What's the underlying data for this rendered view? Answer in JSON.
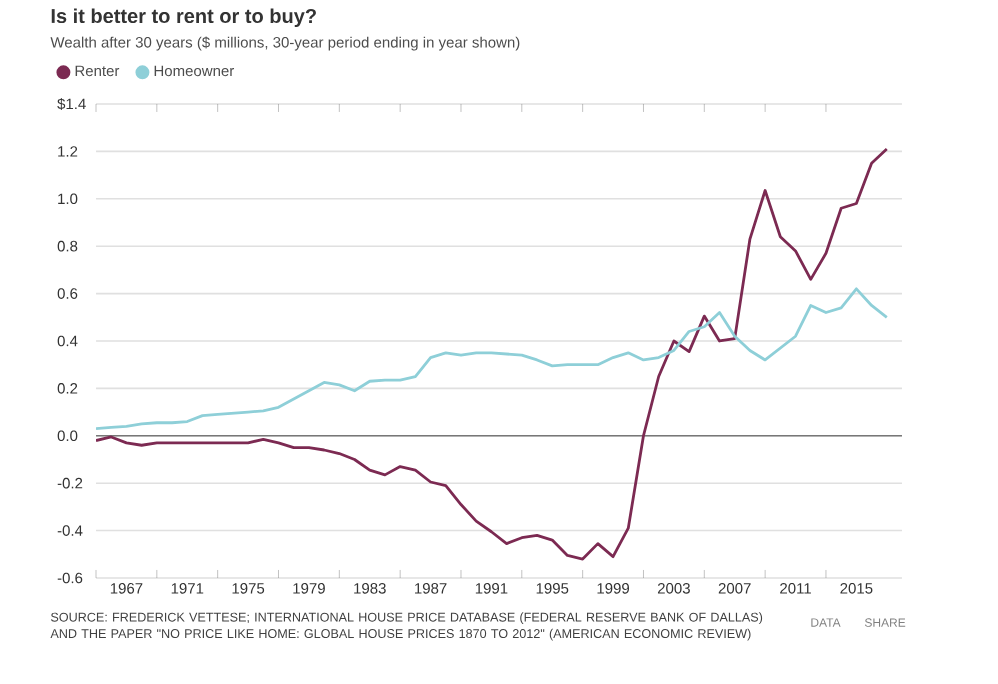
{
  "chart_data": {
    "type": "line",
    "title": "Is it better to rent or to buy?",
    "subtitle": "Wealth after 30 years ($ millions, 30-year period ending in year shown)",
    "x": [
      1965,
      1966,
      1967,
      1968,
      1969,
      1970,
      1971,
      1972,
      1973,
      1974,
      1975,
      1976,
      1977,
      1978,
      1979,
      1980,
      1981,
      1982,
      1983,
      1984,
      1985,
      1986,
      1987,
      1988,
      1989,
      1990,
      1991,
      1992,
      1993,
      1994,
      1995,
      1996,
      1997,
      1998,
      1999,
      2000,
      2001,
      2002,
      2003,
      2004,
      2005,
      2006,
      2007,
      2008,
      2009,
      2010,
      2011,
      2012,
      2013,
      2014,
      2015,
      2016,
      2017
    ],
    "series": [
      {
        "name": "Renter",
        "color": "#7c2a52",
        "values": [
          -0.02,
          -0.005,
          -0.03,
          -0.04,
          -0.03,
          -0.03,
          -0.03,
          -0.03,
          -0.03,
          -0.03,
          -0.03,
          -0.015,
          -0.03,
          -0.05,
          -0.05,
          -0.06,
          -0.075,
          -0.1,
          -0.145,
          -0.165,
          -0.13,
          -0.145,
          -0.195,
          -0.21,
          -0.29,
          -0.36,
          -0.405,
          -0.455,
          -0.43,
          -0.42,
          -0.44,
          -0.505,
          -0.52,
          -0.455,
          -0.51,
          -0.39,
          0.0,
          0.25,
          0.4,
          0.355,
          0.505,
          0.4,
          0.41,
          0.83,
          1.035,
          0.84,
          0.78,
          0.66,
          0.77,
          0.96,
          0.98,
          1.15,
          1.21
        ]
      },
      {
        "name": "Homeowner",
        "color": "#8ecfd8",
        "values": [
          0.03,
          0.035,
          0.04,
          0.05,
          0.055,
          0.055,
          0.06,
          0.085,
          0.09,
          0.095,
          0.1,
          0.105,
          0.12,
          0.155,
          0.19,
          0.225,
          0.215,
          0.19,
          0.23,
          0.235,
          0.235,
          0.25,
          0.33,
          0.35,
          0.34,
          0.35,
          0.35,
          0.345,
          0.34,
          0.32,
          0.295,
          0.3,
          0.3,
          0.3,
          0.33,
          0.35,
          0.32,
          0.33,
          0.36,
          0.44,
          0.46,
          0.52,
          0.42,
          0.36,
          0.32,
          0.37,
          0.42,
          0.55,
          0.52,
          0.54,
          0.62,
          0.55,
          0.5
        ]
      }
    ],
    "xlim": [
      1965,
      2018
    ],
    "xticks": [
      {
        "value": 1965,
        "label": null
      },
      1967,
      {
        "value": 1969,
        "label": null
      },
      1971,
      {
        "value": 1973,
        "label": null
      },
      1975,
      {
        "value": 1977,
        "label": null
      },
      1979,
      {
        "value": 1981,
        "label": null
      },
      1983,
      {
        "value": 1985,
        "label": null
      },
      1987,
      {
        "value": 1989,
        "label": null
      },
      1991,
      {
        "value": 1993,
        "label": null
      },
      1995,
      {
        "value": 1997,
        "label": null
      },
      1999,
      {
        "value": 2001,
        "label": null
      },
      2003,
      {
        "value": 2005,
        "label": null
      },
      2007,
      {
        "value": 2009,
        "label": null
      },
      2011,
      {
        "value": 2013,
        "label": null
      },
      2015
    ],
    "ylim": [
      -0.6,
      1.4
    ],
    "yticks": [
      -0.6,
      -0.4,
      -0.2,
      {
        "value": 0,
        "label": "0.0"
      },
      0.2,
      0.4,
      0.6,
      0.8,
      {
        "value": 1.0,
        "label": "1.0"
      },
      1.2,
      {
        "value": 1.4,
        "label": "$1.4"
      }
    ],
    "grid": "y",
    "legend": "top left",
    "marker": "none",
    "line_style": "solid",
    "ref_lines": [
      {
        "axis": "y",
        "value": 0,
        "color": "#777777"
      }
    ],
    "annotations": [
      "SOURCE: FREDERICK VETTESE; INTERNATIONAL HOUSE PRICE DATABASE (FEDERAL RESERVE BANK OF DALLAS) AND THE PAPER \"NO PRICE LIKE HOME: GLOBAL HOUSE PRICES 1870 TO 2012\" (AMERICAN ECONOMIC REVIEW)",
      "DATA",
      "SHARE"
    ]
  }
}
